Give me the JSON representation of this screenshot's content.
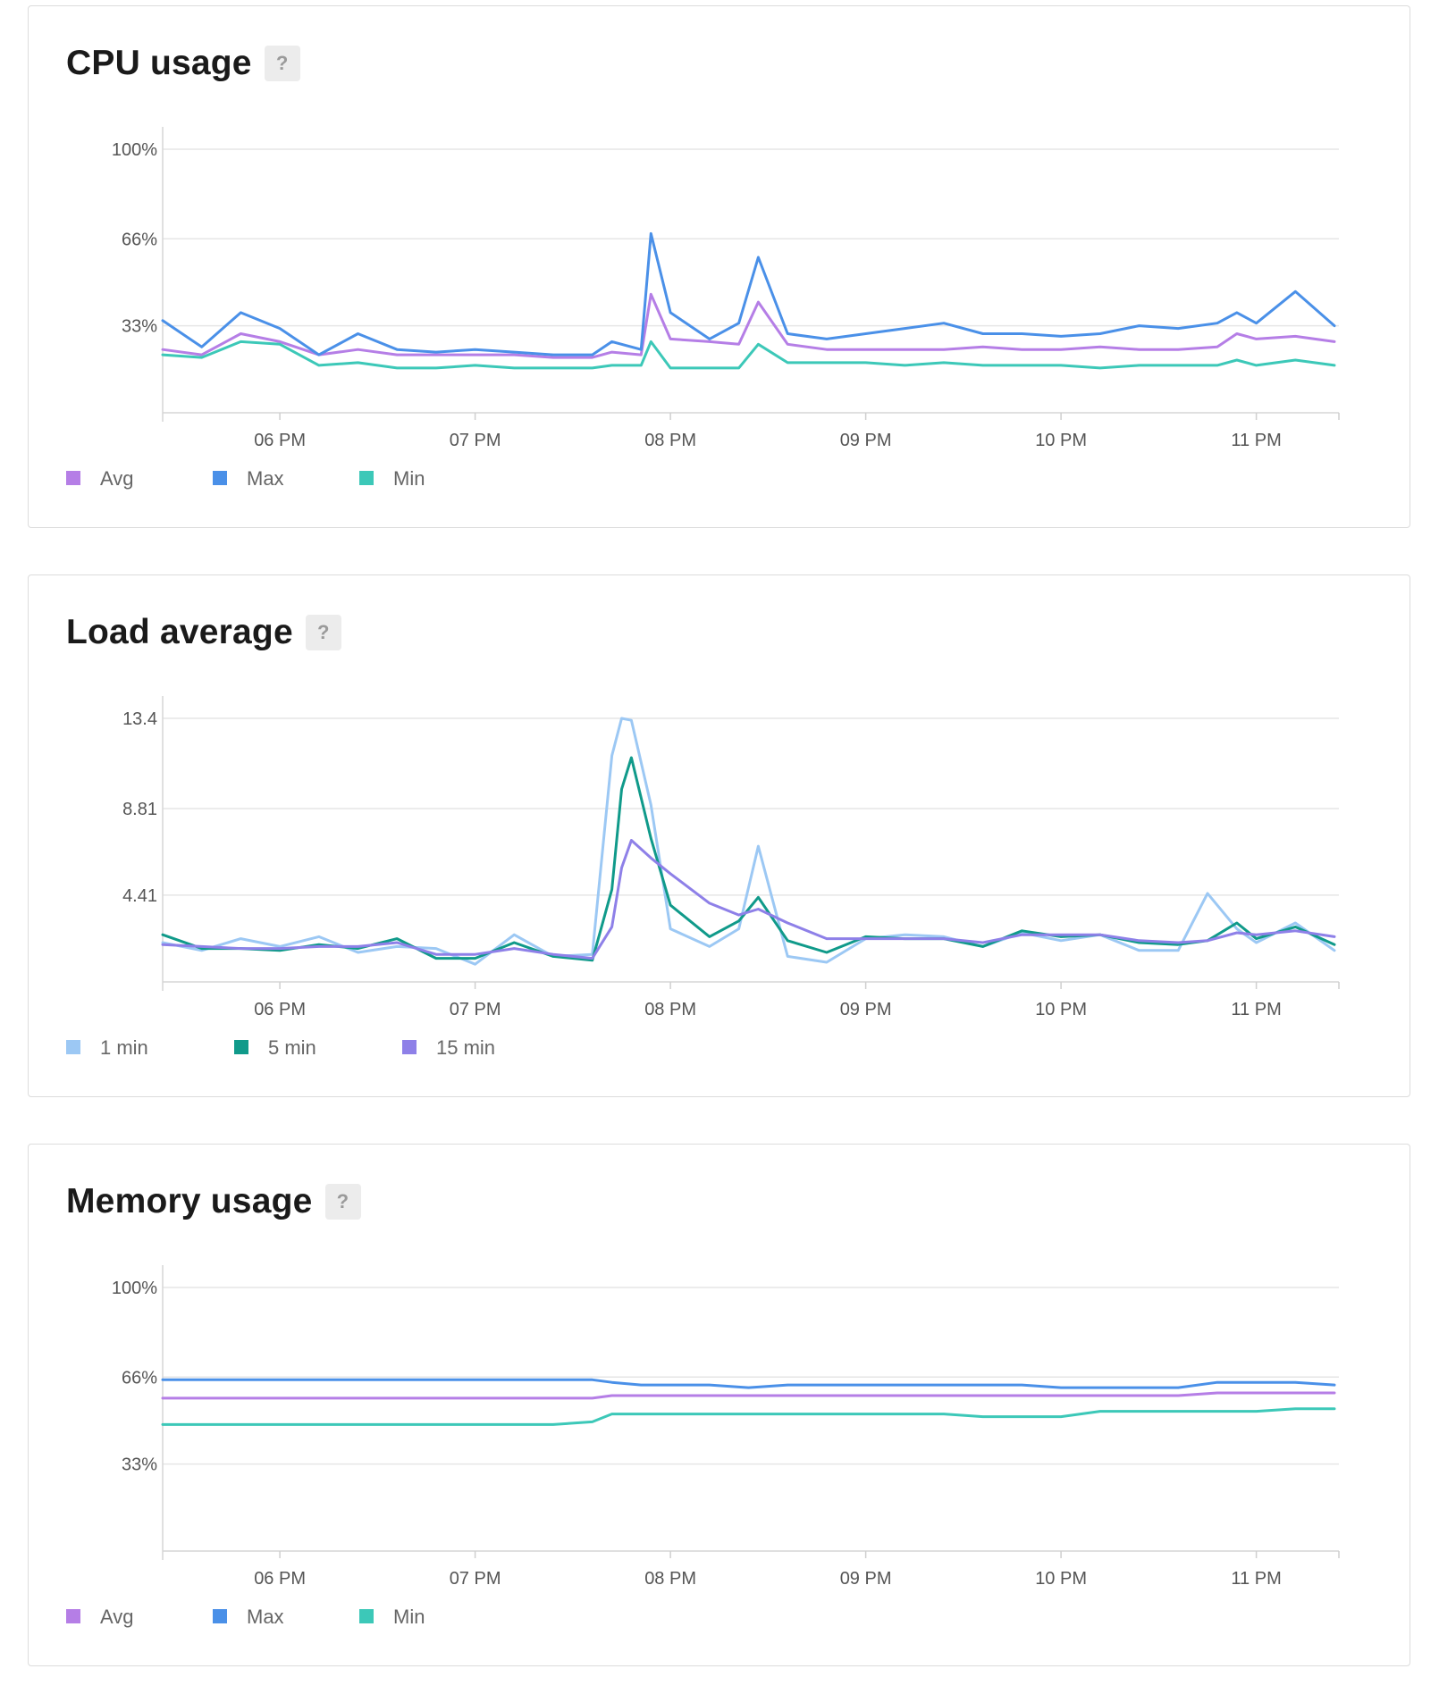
{
  "cards": [
    {
      "title": "CPU usage",
      "help": "?",
      "y_ticks": [
        "100%",
        "66%",
        "33%"
      ],
      "x_ticks": [
        "06 PM",
        "07 PM",
        "08 PM",
        "09 PM",
        "10 PM",
        "11 PM"
      ],
      "legend": [
        {
          "label": "Avg",
          "color": "#b57ee6"
        },
        {
          "label": "Max",
          "color": "#4a90e8"
        },
        {
          "label": "Min",
          "color": "#3cc8b8"
        }
      ]
    },
    {
      "title": "Load average",
      "help": "?",
      "y_ticks": [
        "13.4",
        "8.81",
        "4.41"
      ],
      "x_ticks": [
        "06 PM",
        "07 PM",
        "08 PM",
        "09 PM",
        "10 PM",
        "11 PM"
      ],
      "legend": [
        {
          "label": "1 min",
          "color": "#9cc8f4"
        },
        {
          "label": "5 min",
          "color": "#109a8a"
        },
        {
          "label": "15 min",
          "color": "#8e80e8"
        }
      ]
    },
    {
      "title": "Memory usage",
      "help": "?",
      "y_ticks": [
        "100%",
        "66%",
        "33%"
      ],
      "x_ticks": [
        "06 PM",
        "07 PM",
        "08 PM",
        "09 PM",
        "10 PM",
        "11 PM"
      ],
      "legend": [
        {
          "label": "Avg",
          "color": "#b57ee6"
        },
        {
          "label": "Max",
          "color": "#4a90e8"
        },
        {
          "label": "Min",
          "color": "#3cc8b8"
        }
      ]
    }
  ],
  "chart_data": [
    {
      "type": "line",
      "title": "CPU usage",
      "ylim": [
        0,
        100
      ],
      "y_ticks": [
        100,
        66,
        33
      ],
      "x_ticks": [
        "06 PM",
        "07 PM",
        "08 PM",
        "09 PM",
        "10 PM",
        "11 PM"
      ],
      "x_hours": [
        17.4,
        17.6,
        17.8,
        18.0,
        18.2,
        18.4,
        18.6,
        18.8,
        19.0,
        19.2,
        19.4,
        19.6,
        19.7,
        19.85,
        19.9,
        20.0,
        20.2,
        20.35,
        20.45,
        20.6,
        20.8,
        21.0,
        21.2,
        21.4,
        21.6,
        21.8,
        22.0,
        22.2,
        22.4,
        22.6,
        22.8,
        22.9,
        23.0,
        23.2,
        23.4
      ],
      "grid": true,
      "legend_position": "bottom-left",
      "series": [
        {
          "name": "Avg",
          "color": "#b57ee6",
          "values": [
            24,
            22,
            30,
            27,
            22,
            24,
            22,
            22,
            22,
            22,
            21,
            21,
            23,
            22,
            45,
            28,
            27,
            26,
            42,
            26,
            24,
            24,
            24,
            24,
            25,
            24,
            24,
            25,
            24,
            24,
            25,
            30,
            28,
            29,
            27
          ]
        },
        {
          "name": "Max",
          "color": "#4a90e8",
          "values": [
            35,
            25,
            38,
            32,
            22,
            30,
            24,
            23,
            24,
            23,
            22,
            22,
            27,
            24,
            68,
            38,
            28,
            34,
            59,
            30,
            28,
            30,
            32,
            34,
            30,
            30,
            29,
            30,
            33,
            32,
            34,
            38,
            34,
            46,
            33
          ]
        },
        {
          "name": "Min",
          "color": "#3cc8b8",
          "values": [
            22,
            21,
            27,
            26,
            18,
            19,
            17,
            17,
            18,
            17,
            17,
            17,
            18,
            18,
            27,
            17,
            17,
            17,
            26,
            19,
            19,
            19,
            18,
            19,
            18,
            18,
            18,
            17,
            18,
            18,
            18,
            20,
            18,
            20,
            18
          ]
        }
      ]
    },
    {
      "type": "line",
      "title": "Load average",
      "ylim": [
        0,
        13.4
      ],
      "y_ticks": [
        13.4,
        8.81,
        4.41
      ],
      "x_ticks": [
        "06 PM",
        "07 PM",
        "08 PM",
        "09 PM",
        "10 PM",
        "11 PM"
      ],
      "x_hours": [
        17.4,
        17.6,
        17.8,
        18.0,
        18.2,
        18.4,
        18.6,
        18.8,
        19.0,
        19.2,
        19.4,
        19.6,
        19.7,
        19.75,
        19.8,
        19.9,
        20.0,
        20.2,
        20.35,
        20.45,
        20.6,
        20.8,
        21.0,
        21.2,
        21.4,
        21.6,
        21.8,
        22.0,
        22.2,
        22.4,
        22.6,
        22.75,
        22.9,
        23.0,
        23.2,
        23.4
      ],
      "grid": true,
      "legend_position": "bottom-left",
      "series": [
        {
          "name": "1 min",
          "color": "#9cc8f4",
          "values": [
            2.0,
            1.6,
            2.2,
            1.8,
            2.3,
            1.5,
            1.8,
            1.7,
            0.9,
            2.4,
            1.3,
            1.4,
            11.5,
            13.4,
            13.3,
            9.0,
            2.7,
            1.8,
            2.7,
            6.9,
            1.3,
            1.0,
            2.2,
            2.4,
            2.3,
            1.8,
            2.5,
            2.1,
            2.4,
            1.6,
            1.6,
            4.5,
            2.7,
            2.0,
            3.0,
            1.6
          ]
        },
        {
          "name": "5 min",
          "color": "#109a8a",
          "values": [
            2.4,
            1.7,
            1.7,
            1.6,
            1.9,
            1.7,
            2.2,
            1.2,
            1.2,
            2.0,
            1.3,
            1.1,
            4.7,
            9.8,
            11.4,
            7.3,
            3.9,
            2.3,
            3.1,
            4.3,
            2.1,
            1.5,
            2.3,
            2.2,
            2.2,
            1.8,
            2.6,
            2.3,
            2.4,
            2.0,
            1.9,
            2.1,
            3.0,
            2.2,
            2.8,
            1.9
          ]
        },
        {
          "name": "15 min",
          "color": "#8e80e8",
          "values": [
            1.9,
            1.8,
            1.7,
            1.7,
            1.8,
            1.8,
            2.0,
            1.4,
            1.4,
            1.7,
            1.4,
            1.2,
            2.8,
            5.8,
            7.2,
            6.3,
            5.5,
            4.0,
            3.4,
            3.7,
            3.0,
            2.2,
            2.2,
            2.2,
            2.2,
            2.0,
            2.4,
            2.4,
            2.4,
            2.1,
            2.0,
            2.1,
            2.5,
            2.4,
            2.6,
            2.3
          ]
        }
      ]
    },
    {
      "type": "line",
      "title": "Memory usage",
      "ylim": [
        0,
        100
      ],
      "y_ticks": [
        100,
        66,
        33
      ],
      "x_ticks": [
        "06 PM",
        "07 PM",
        "08 PM",
        "09 PM",
        "10 PM",
        "11 PM"
      ],
      "x_hours": [
        17.4,
        17.6,
        17.8,
        18.0,
        18.2,
        18.4,
        18.6,
        18.8,
        19.0,
        19.2,
        19.4,
        19.6,
        19.7,
        19.85,
        20.0,
        20.2,
        20.4,
        20.6,
        20.8,
        21.0,
        21.2,
        21.4,
        21.6,
        21.8,
        22.0,
        22.2,
        22.4,
        22.6,
        22.8,
        23.0,
        23.2,
        23.4
      ],
      "grid": true,
      "legend_position": "bottom-left",
      "series": [
        {
          "name": "Avg",
          "color": "#b57ee6",
          "values": [
            58,
            58,
            58,
            58,
            58,
            58,
            58,
            58,
            58,
            58,
            58,
            58,
            59,
            59,
            59,
            59,
            59,
            59,
            59,
            59,
            59,
            59,
            59,
            59,
            59,
            59,
            59,
            59,
            60,
            60,
            60,
            60
          ]
        },
        {
          "name": "Max",
          "color": "#4a90e8",
          "values": [
            65,
            65,
            65,
            65,
            65,
            65,
            65,
            65,
            65,
            65,
            65,
            65,
            64,
            63,
            63,
            63,
            62,
            63,
            63,
            63,
            63,
            63,
            63,
            63,
            62,
            62,
            62,
            62,
            64,
            64,
            64,
            63
          ]
        },
        {
          "name": "Min",
          "color": "#3cc8b8",
          "values": [
            48,
            48,
            48,
            48,
            48,
            48,
            48,
            48,
            48,
            48,
            48,
            49,
            52,
            52,
            52,
            52,
            52,
            52,
            52,
            52,
            52,
            52,
            51,
            51,
            51,
            53,
            53,
            53,
            53,
            53,
            54,
            54
          ]
        }
      ]
    }
  ]
}
